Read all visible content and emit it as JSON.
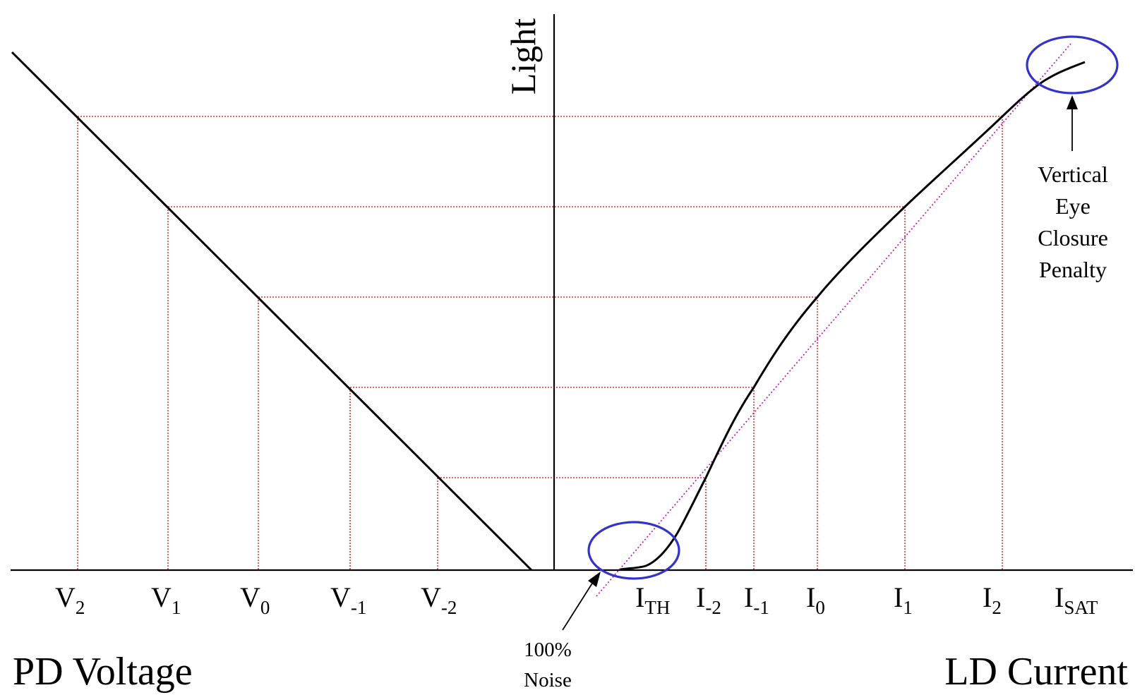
{
  "labels": {
    "y_axis": "Light",
    "x_axis_left": "PD Voltage",
    "x_axis_right": "LD Current"
  },
  "voltage_ticks": [
    {
      "main": "V",
      "sub": "2"
    },
    {
      "main": "V",
      "sub": "1"
    },
    {
      "main": "V",
      "sub": "0"
    },
    {
      "main": "V",
      "sub": "-1"
    },
    {
      "main": "V",
      "sub": "-2"
    }
  ],
  "current_ticks": [
    {
      "main": "I",
      "sub": "TH"
    },
    {
      "main": "I",
      "sub": "-2"
    },
    {
      "main": "I",
      "sub": "-1"
    },
    {
      "main": "I",
      "sub": "0"
    },
    {
      "main": "I",
      "sub": "1"
    },
    {
      "main": "I",
      "sub": "2"
    },
    {
      "main": "I",
      "sub": "SAT"
    }
  ],
  "annotations": {
    "noise": {
      "line1": "100%",
      "line2": "Noise"
    },
    "penalty": {
      "line1": "Vertical",
      "line2": "Eye",
      "line3": "Closure",
      "line4": "Penalty"
    }
  },
  "colors": {
    "curve": "#000000",
    "guide": "#e00000",
    "tangent": "#c020c0",
    "highlight": "#3333cc"
  }
}
